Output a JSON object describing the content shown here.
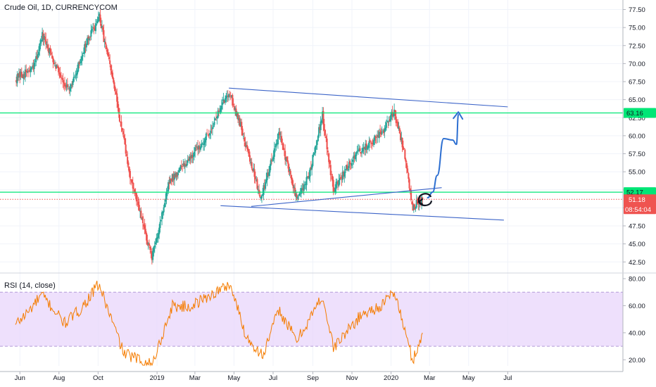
{
  "header": {
    "title": "Crude Oil, 1D, CURRENCYCOM",
    "rsi_title": "RSI (14, close)"
  },
  "price_labels": {
    "upper_level": "63.16",
    "lower_level": "52.17",
    "last_price": "51.18",
    "countdown": "08:54:04"
  },
  "colors": {
    "up": "#26a69a",
    "down": "#ef5350",
    "channel": "#3c64c8",
    "level": "#00e676",
    "last": "#ef5350",
    "rsi_line": "#f57c00",
    "rsi_band": "#e8d5fb",
    "arrow": "#2d6fd1",
    "circle": "#131722"
  },
  "chart_data": [
    {
      "type": "candlestick",
      "title": "Crude Oil, 1D, CURRENCYCOM",
      "x_ticks": [
        "Jun",
        "Aug",
        "Oct",
        "2019",
        "Mar",
        "May",
        "Jul",
        "Sep",
        "Nov",
        "2020",
        "Mar",
        "May",
        "Jul"
      ],
      "y_ticks": [
        "77.50",
        "75.00",
        "72.50",
        "70.00",
        "67.50",
        "65.00",
        "62.50",
        "60.00",
        "57.50",
        "55.00",
        "52.50",
        "50.00",
        "47.50",
        "45.00",
        "42.50"
      ],
      "ylim": [
        41.5,
        78.5
      ],
      "horizontal_levels": [
        63.16,
        52.17
      ],
      "last_price": 51.18,
      "key_closes": [
        {
          "date": "2018-05-25",
          "close": 67.9
        },
        {
          "date": "2018-06-22",
          "close": 69.3
        },
        {
          "date": "2018-07-06",
          "close": 73.8
        },
        {
          "date": "2018-08-17",
          "close": 65.9
        },
        {
          "date": "2018-09-10",
          "close": 72.3
        },
        {
          "date": "2018-10-03",
          "close": 76.4
        },
        {
          "date": "2018-10-25",
          "close": 67.3
        },
        {
          "date": "2018-11-20",
          "close": 54.3
        },
        {
          "date": "2018-12-24",
          "close": 43.0
        },
        {
          "date": "2019-01-20",
          "close": 53.6
        },
        {
          "date": "2019-02-15",
          "close": 56.3
        },
        {
          "date": "2019-03-20",
          "close": 59.9
        },
        {
          "date": "2019-04-23",
          "close": 66.2
        },
        {
          "date": "2019-05-10",
          "close": 61.8
        },
        {
          "date": "2019-06-12",
          "close": 51.3
        },
        {
          "date": "2019-07-10",
          "close": 60.4
        },
        {
          "date": "2019-08-07",
          "close": 51.1
        },
        {
          "date": "2019-08-25",
          "close": 54.2
        },
        {
          "date": "2019-09-16",
          "close": 62.9
        },
        {
          "date": "2019-10-03",
          "close": 52.5
        },
        {
          "date": "2019-11-05",
          "close": 57.2
        },
        {
          "date": "2019-12-15",
          "close": 60.1
        },
        {
          "date": "2020-01-06",
          "close": 63.3
        },
        {
          "date": "2020-01-20",
          "close": 58.4
        },
        {
          "date": "2020-02-04",
          "close": 49.9
        },
        {
          "date": "2020-02-14",
          "close": 51.2
        },
        {
          "date": "2020-02-19",
          "close": 51.18
        }
      ],
      "channel_lines": [
        {
          "from": {
            "date": "2019-04-23",
            "price": 66.6
          },
          "to": {
            "date": "2020-07-01",
            "price": 64.0
          }
        },
        {
          "from": {
            "date": "2019-04-10",
            "price": 50.3
          },
          "to": {
            "date": "2020-06-25",
            "price": 48.3
          }
        },
        {
          "from": {
            "date": "2019-05-28",
            "price": 50.2
          },
          "to": {
            "date": "2020-03-20",
            "price": 52.8
          }
        }
      ],
      "projection_path": [
        {
          "date": "2020-02-27",
          "price": 51.4
        },
        {
          "date": "2020-03-06",
          "price": 52.2
        },
        {
          "date": "2020-03-13",
          "price": 54.5
        },
        {
          "date": "2020-03-23",
          "price": 59.6
        },
        {
          "date": "2020-04-06",
          "price": 59.4
        },
        {
          "date": "2020-04-12",
          "price": 58.8
        },
        {
          "date": "2020-04-15",
          "price": 62.9
        }
      ]
    },
    {
      "type": "line",
      "title": "RSI (14, close)",
      "y_ticks": [
        "80.00",
        "60.00",
        "40.00",
        "20.00"
      ],
      "ylim": [
        15,
        80
      ],
      "band": [
        30,
        70
      ],
      "key_values": [
        {
          "date": "2018-05-25",
          "value": 46
        },
        {
          "date": "2018-06-15",
          "value": 56
        },
        {
          "date": "2018-07-05",
          "value": 68
        },
        {
          "date": "2018-08-10",
          "value": 47
        },
        {
          "date": "2018-09-05",
          "value": 58
        },
        {
          "date": "2018-10-02",
          "value": 76
        },
        {
          "date": "2018-11-10",
          "value": 25
        },
        {
          "date": "2018-12-24",
          "value": 16
        },
        {
          "date": "2019-01-25",
          "value": 60
        },
        {
          "date": "2019-02-20",
          "value": 59
        },
        {
          "date": "2019-03-15",
          "value": 65
        },
        {
          "date": "2019-04-25",
          "value": 76
        },
        {
          "date": "2019-05-20",
          "value": 37
        },
        {
          "date": "2019-06-15",
          "value": 23
        },
        {
          "date": "2019-07-10",
          "value": 57
        },
        {
          "date": "2019-08-07",
          "value": 34
        },
        {
          "date": "2019-09-16",
          "value": 67
        },
        {
          "date": "2019-10-03",
          "value": 29
        },
        {
          "date": "2019-11-15",
          "value": 53
        },
        {
          "date": "2019-12-20",
          "value": 61
        },
        {
          "date": "2020-01-06",
          "value": 71
        },
        {
          "date": "2020-02-04",
          "value": 19
        },
        {
          "date": "2020-02-19",
          "value": 40
        }
      ]
    }
  ]
}
